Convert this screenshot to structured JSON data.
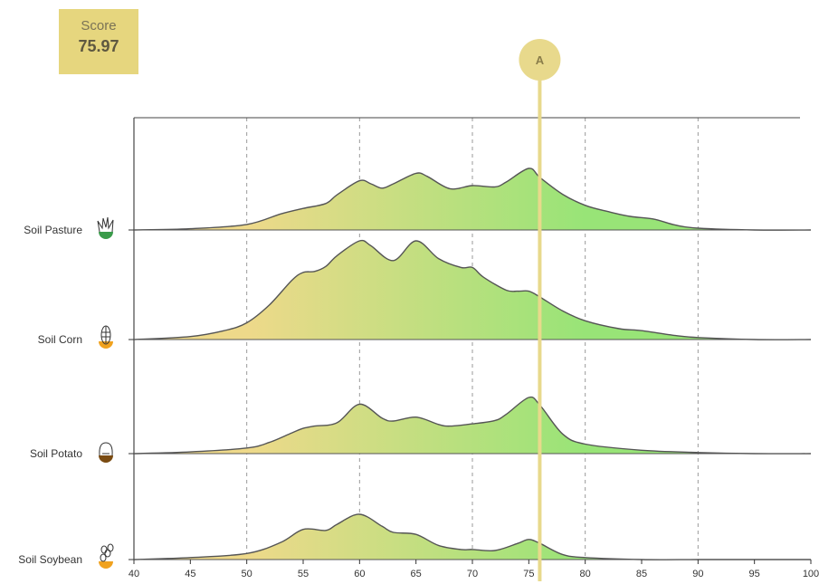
{
  "score": {
    "label": "Score",
    "value": "75.97"
  },
  "colors": {
    "score_bg": "#e6d67e",
    "marker": "#e8d98c",
    "fill_low": "#eed98a",
    "fill_high": "#98e477",
    "curve": "#555555"
  },
  "chart_data": {
    "type": "ridgeline",
    "x_ticks": [
      40,
      45,
      50,
      55,
      60,
      65,
      70,
      75,
      80,
      85,
      90,
      95,
      100
    ],
    "xlim": [
      40,
      100
    ],
    "grid_x": [
      50,
      60,
      70,
      80,
      90
    ],
    "marker": {
      "label": "A",
      "x": 75.97
    },
    "series": [
      {
        "name": "Soil Pasture",
        "icon": "grass-icon",
        "icon_color": "#3a9b4a",
        "x": [
          40,
          45,
          50,
          53,
          55,
          57,
          58,
          60,
          61,
          62,
          63,
          65,
          66,
          68,
          70,
          72,
          73,
          75,
          76,
          78,
          80,
          82,
          84,
          86,
          88,
          90,
          95,
          100
        ],
        "y": [
          0.0,
          0.02,
          0.09,
          0.26,
          0.35,
          0.43,
          0.57,
          0.8,
          0.75,
          0.68,
          0.75,
          0.92,
          0.87,
          0.67,
          0.72,
          0.7,
          0.78,
          1.0,
          0.85,
          0.58,
          0.4,
          0.3,
          0.22,
          0.18,
          0.08,
          0.03,
          0.0,
          0.0
        ]
      },
      {
        "name": "Soil Corn",
        "icon": "corn-icon",
        "icon_color": "#f0a21f",
        "x": [
          40,
          45,
          48,
          50,
          52,
          54,
          55,
          56,
          57,
          58,
          60,
          61,
          63,
          65,
          67,
          69,
          70,
          71,
          73,
          74,
          75,
          76,
          78,
          80,
          83,
          85,
          88,
          90,
          95,
          100
        ],
        "y": [
          0.0,
          0.03,
          0.09,
          0.17,
          0.35,
          0.6,
          0.68,
          0.69,
          0.74,
          0.85,
          1.0,
          0.95,
          0.8,
          1.0,
          0.82,
          0.73,
          0.73,
          0.63,
          0.5,
          0.49,
          0.49,
          0.43,
          0.29,
          0.19,
          0.11,
          0.09,
          0.04,
          0.02,
          0.0,
          0.0
        ]
      },
      {
        "name": "Soil Potato",
        "icon": "basket-icon",
        "icon_color": "#7a4b12",
        "x": [
          40,
          45,
          50,
          52,
          54,
          55,
          56,
          58,
          60,
          62,
          63,
          65,
          67,
          68,
          70,
          72,
          73,
          75,
          76,
          78,
          80,
          85,
          90,
          95,
          100
        ],
        "y": [
          0.0,
          0.03,
          0.1,
          0.2,
          0.37,
          0.45,
          0.49,
          0.55,
          0.88,
          0.63,
          0.58,
          0.65,
          0.52,
          0.49,
          0.53,
          0.59,
          0.7,
          1.0,
          0.86,
          0.35,
          0.17,
          0.06,
          0.02,
          0.0,
          0.0
        ]
      },
      {
        "name": "Soil Soybean",
        "icon": "soybean-icon",
        "icon_color": "#f0a21f",
        "x": [
          40,
          45,
          50,
          53,
          55,
          57,
          58,
          60,
          62,
          63,
          65,
          67,
          69,
          70,
          72,
          74,
          75,
          76,
          78,
          80,
          85,
          90,
          95,
          100
        ],
        "y": [
          0.0,
          0.02,
          0.06,
          0.17,
          0.3,
          0.29,
          0.35,
          0.45,
          0.33,
          0.27,
          0.25,
          0.14,
          0.1,
          0.1,
          0.09,
          0.16,
          0.2,
          0.16,
          0.05,
          0.02,
          0.0,
          0.0,
          0.0,
          0.0
        ]
      }
    ]
  }
}
